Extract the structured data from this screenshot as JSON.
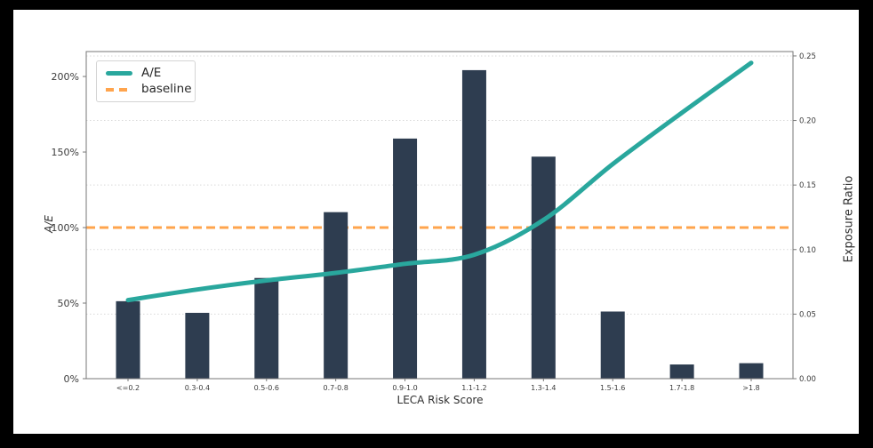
{
  "colors": {
    "background": "#000000",
    "figure": "#ffffff",
    "bar": "#2e3d50",
    "line": "#29a79d",
    "baseline": "#ffa44d",
    "grid": "#d9d9d9",
    "spine": "#777777",
    "tick_text": "#3c3c3c"
  },
  "chart_data": {
    "type": "combo_bar_line_dual_axis",
    "title": "",
    "categories": [
      "<=0.2",
      "0.3-0.4",
      "0.5-0.6",
      "0.7-0.8",
      "0.9-1.0",
      "1.1-1.2",
      "1.3-1.4",
      "1.5-1.6",
      "1.7-1.8",
      ">1.8"
    ],
    "series": [
      {
        "name": "A/E",
        "type": "line",
        "axis": "left",
        "unit": "%",
        "values": [
          52,
          59,
          65,
          70,
          76,
          82,
          105,
          142,
          176,
          209
        ]
      },
      {
        "name": "Exposure Ratio",
        "type": "bar",
        "axis": "right",
        "values": [
          0.06,
          0.051,
          0.078,
          0.129,
          0.186,
          0.239,
          0.172,
          0.052,
          0.011,
          0.012
        ]
      },
      {
        "name": "baseline",
        "type": "hline",
        "axis": "left",
        "value": 100,
        "style": "dashed"
      }
    ],
    "xlabel": "LECA Risk Score",
    "left_axis": {
      "label": "A/E",
      "ticks": [
        "0%",
        "50%",
        "100%",
        "150%",
        "200%"
      ],
      "tick_values": [
        0,
        50,
        100,
        150,
        200
      ],
      "max": 216.5
    },
    "right_axis": {
      "label": "Exposure Ratio",
      "ticks": [
        "0.00",
        "0.05",
        "0.10",
        "0.15",
        "0.20",
        "0.25"
      ],
      "tick_values": [
        0,
        0.05,
        0.1,
        0.15,
        0.2,
        0.25
      ],
      "max": 0.2534
    },
    "legend": {
      "position": "upper left",
      "items": [
        {
          "label": "A/E",
          "swatch": "solid-teal-line"
        },
        {
          "label": "baseline",
          "swatch": "dashed-orange-line"
        }
      ]
    },
    "grid": "horizontal dotted lines at right-axis ticks"
  }
}
